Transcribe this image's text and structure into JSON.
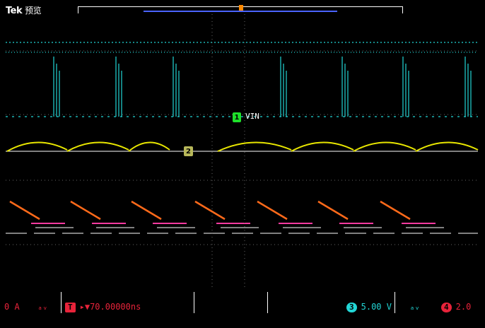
{
  "header": {
    "brand": "Tek",
    "mode": "预览"
  },
  "channel_markers": {
    "ch1": "1",
    "ch1_label": "VIN",
    "ch2": "2"
  },
  "bottom": {
    "ch1_scale": "0 A",
    "ch1_coupling": "ₐᵥ",
    "trigger_badge": "T",
    "trigger_position": "70.00000ns",
    "ch3_badge": "3",
    "ch3_scale": "5.00 V",
    "ch3_coupling": "ₐᵥ",
    "ch4_badge": "4",
    "ch4_scale": "2.0"
  },
  "colors": {
    "ch1": "#1ee02a",
    "ch2": "#e8e600",
    "ch3": "#22d6d6",
    "ch4": "#e8233a",
    "trigger": "#e8233a"
  }
}
